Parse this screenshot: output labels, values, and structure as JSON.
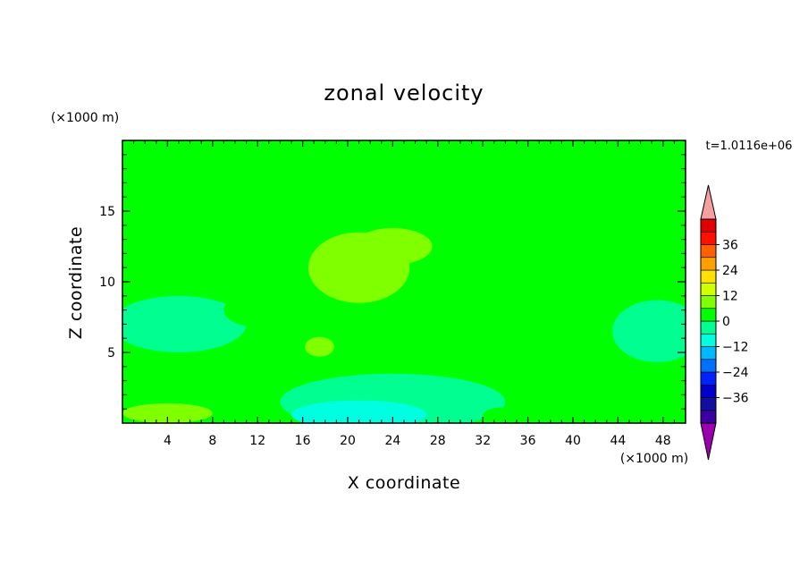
{
  "chart_data": {
    "type": "heatmap",
    "title": "zonal velocity",
    "xlabel": "X coordinate",
    "ylabel": "Z coordinate",
    "x_unit": "(×1000 m)",
    "y_unit": "(×1000 m)",
    "time_label": "t=1.0116e+06",
    "xlim": [
      0,
      50
    ],
    "ylim": [
      0,
      20
    ],
    "x_ticks": [
      4,
      8,
      12,
      16,
      20,
      24,
      28,
      32,
      36,
      40,
      44,
      48
    ],
    "y_ticks": [
      5,
      10,
      15
    ],
    "colorbar": {
      "labels": [
        36,
        24,
        12,
        0,
        -12,
        -24,
        -36
      ],
      "levels": [
        -42,
        -36,
        -30,
        -24,
        -18,
        -12,
        -6,
        0,
        6,
        12,
        18,
        24,
        30,
        36,
        42
      ],
      "colors": [
        "#3a00a0",
        "#1010a0",
        "#0000cc",
        "#0022ff",
        "#0070ff",
        "#00b8ff",
        "#00ffe0",
        "#00ff90",
        "#00ff00",
        "#80ff00",
        "#d0ff00",
        "#ffe000",
        "#ffa000",
        "#ff6000",
        "#ff1000",
        "#e00000"
      ],
      "max_arrow_color": "#f4a0a0",
      "min_arrow_color": "#9a00b0"
    },
    "field": {
      "background": 3,
      "blobs": [
        {
          "x": 28,
          "y": 11,
          "rx": 13,
          "ry": 5.5,
          "v": 2
        },
        {
          "x": 38,
          "y": 8,
          "rx": 10,
          "ry": 4,
          "v": 2
        },
        {
          "x": 22,
          "y": 9,
          "rx": 7,
          "ry": 4,
          "v": 2
        },
        {
          "x": 45,
          "y": 17.5,
          "rx": 7,
          "ry": 3,
          "v": 2
        },
        {
          "x": 3,
          "y": 18.5,
          "rx": 4.5,
          "ry": 2,
          "v": 2
        },
        {
          "x": 8,
          "y": 8,
          "rx": 7,
          "ry": 2.5,
          "v": 3
        },
        {
          "x": 21,
          "y": 11,
          "rx": 4.5,
          "ry": 2.5,
          "v": 9
        },
        {
          "x": 24,
          "y": 12.5,
          "rx": 3.5,
          "ry": 1.3,
          "v": 9
        },
        {
          "x": 17.5,
          "y": 5.4,
          "rx": 1.3,
          "ry": 0.7,
          "v": 9
        },
        {
          "x": 5,
          "y": 7,
          "rx": 6,
          "ry": 2,
          "v": -4
        },
        {
          "x": 47.5,
          "y": 6.5,
          "rx": 4,
          "ry": 2.2,
          "v": -4
        },
        {
          "x": 24,
          "y": 1.5,
          "rx": 10,
          "ry": 2,
          "v": -4
        },
        {
          "x": 21,
          "y": 0.6,
          "rx": 6,
          "ry": 1,
          "v": -9
        },
        {
          "x": 4,
          "y": 0.8,
          "rx": 5,
          "ry": 1.3,
          "v": 5
        },
        {
          "x": 4,
          "y": 0.7,
          "rx": 4,
          "ry": 0.7,
          "v": 10
        },
        {
          "x": 48,
          "y": 0.8,
          "rx": 2.5,
          "ry": 1,
          "v": 5
        },
        {
          "x": 33.5,
          "y": 0.5,
          "rx": 1.5,
          "ry": 0.6,
          "v": 5
        },
        {
          "x": 12,
          "y": 8,
          "rx": 3,
          "ry": 1.2,
          "v": 1
        }
      ]
    }
  }
}
